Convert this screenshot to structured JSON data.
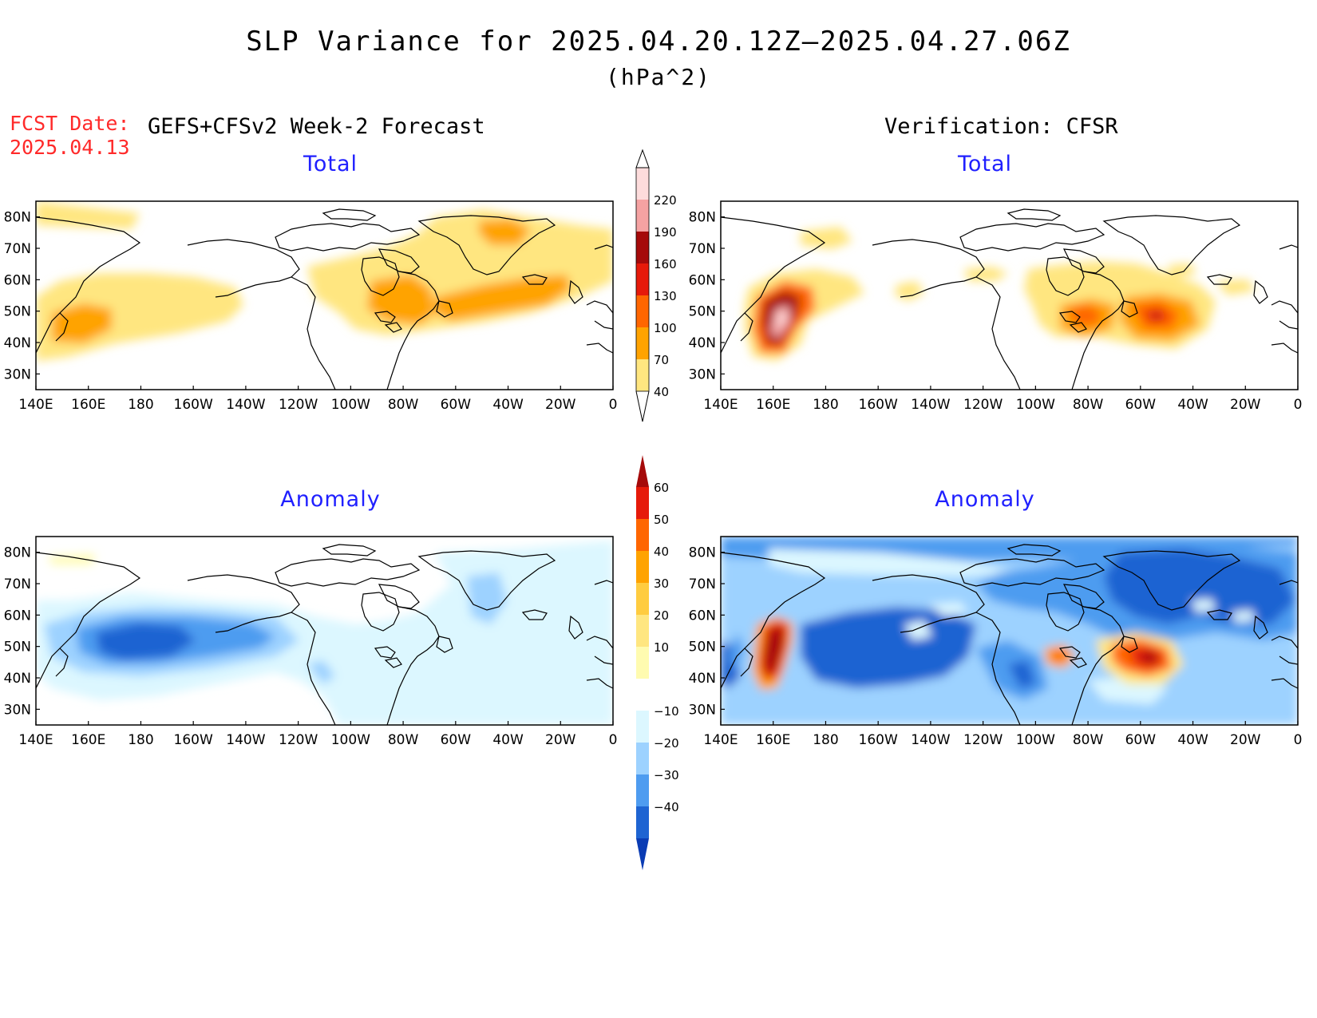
{
  "title": "SLP Variance for 2025.04.20.12Z–2025.04.27.06Z",
  "units": "(hPa^2)",
  "fcst_label": "FCST Date:",
  "fcst_date": "2025.04.13",
  "left_header": "GEFS+CFSv2 Week-2 Forecast",
  "right_header": "Verification: CFSR",
  "panels": [
    {
      "id": "forecast-total",
      "subtitle": "Total"
    },
    {
      "id": "verification-total",
      "subtitle": "Total"
    },
    {
      "id": "forecast-anomaly",
      "subtitle": "Anomaly"
    },
    {
      "id": "verification-anomaly",
      "subtitle": "Anomaly"
    }
  ],
  "x_ticks": [
    "140E",
    "160E",
    "180",
    "160W",
    "140W",
    "120W",
    "100W",
    "80W",
    "60W",
    "40W",
    "20W",
    "0"
  ],
  "y_ticks": [
    "80N",
    "70N",
    "60N",
    "50N",
    "40N",
    "30N"
  ],
  "map_extent": {
    "lon_range": [
      "140E",
      "0"
    ],
    "lat_range": [
      "25N",
      "85N"
    ]
  },
  "colorbar_total": {
    "levels": [
      "40",
      "70",
      "100",
      "130",
      "160",
      "190",
      "220"
    ],
    "colors": [
      "#ffe680",
      "#ffa300",
      "#ff6600",
      "#e61a0a",
      "#a50a0a",
      "#f5a2a2",
      "#fddcdc"
    ]
  },
  "colorbar_anomaly": {
    "levels": [
      "60",
      "50",
      "40",
      "30",
      "20",
      "10",
      "−10",
      "−20",
      "−30",
      "−40"
    ],
    "colors_top_to_bottom": [
      "#a50a0a",
      "#e61a0a",
      "#ff6600",
      "#ffa300",
      "#ffcc40",
      "#ffe680",
      "#fffbb0",
      "#ffffff",
      "#dcf7ff",
      "#9dd2ff",
      "#4e9cf0",
      "#1e64d2",
      "#0a3cb4"
    ]
  }
}
